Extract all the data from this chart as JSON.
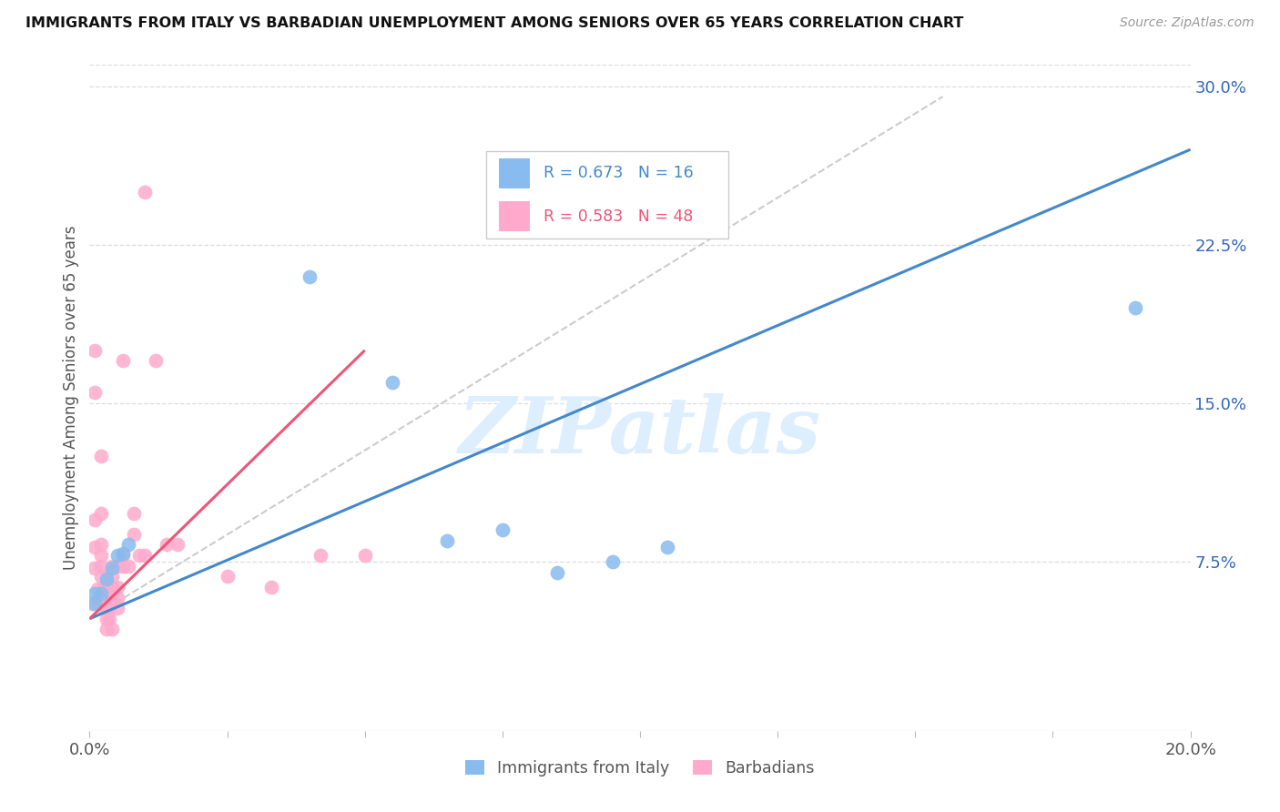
{
  "title": "IMMIGRANTS FROM ITALY VS BARBADIAN UNEMPLOYMENT AMONG SENIORS OVER 65 YEARS CORRELATION CHART",
  "source": "Source: ZipAtlas.com",
  "ylabel": "Unemployment Among Seniors over 65 years",
  "xlim": [
    0.0,
    0.2
  ],
  "ylim": [
    -0.005,
    0.31
  ],
  "xticks": [
    0.0,
    0.025,
    0.05,
    0.075,
    0.1,
    0.125,
    0.15,
    0.175,
    0.2
  ],
  "yticks_right": [
    0.075,
    0.15,
    0.225,
    0.3
  ],
  "yticklabels_right": [
    "7.5%",
    "15.0%",
    "22.5%",
    "30.0%"
  ],
  "legend_italy_R": "0.673",
  "legend_italy_N": "16",
  "legend_barbados_R": "0.583",
  "legend_barbados_N": "48",
  "blue_color": "#88BBEE",
  "pink_color": "#FFAACC",
  "blue_scatter_edge": "#88BBEE",
  "pink_scatter_edge": "#FFAACC",
  "blue_line_color": "#4488CC",
  "pink_line_color": "#EE5577",
  "watermark": "ZIPatlas",
  "watermark_color": "#DDEEFF",
  "italy_points": [
    [
      0.001,
      0.06
    ],
    [
      0.001,
      0.055
    ],
    [
      0.002,
      0.06
    ],
    [
      0.003,
      0.067
    ],
    [
      0.004,
      0.072
    ],
    [
      0.005,
      0.078
    ],
    [
      0.006,
      0.079
    ],
    [
      0.007,
      0.083
    ],
    [
      0.04,
      0.21
    ],
    [
      0.055,
      0.16
    ],
    [
      0.065,
      0.085
    ],
    [
      0.075,
      0.09
    ],
    [
      0.085,
      0.07
    ],
    [
      0.095,
      0.075
    ],
    [
      0.105,
      0.082
    ],
    [
      0.19,
      0.195
    ]
  ],
  "barbados_points": [
    [
      0.0005,
      0.055
    ],
    [
      0.001,
      0.175
    ],
    [
      0.001,
      0.155
    ],
    [
      0.001,
      0.095
    ],
    [
      0.001,
      0.082
    ],
    [
      0.001,
      0.072
    ],
    [
      0.0015,
      0.062
    ],
    [
      0.0015,
      0.057
    ],
    [
      0.002,
      0.125
    ],
    [
      0.002,
      0.098
    ],
    [
      0.002,
      0.083
    ],
    [
      0.002,
      0.078
    ],
    [
      0.002,
      0.073
    ],
    [
      0.002,
      0.068
    ],
    [
      0.0025,
      0.063
    ],
    [
      0.0025,
      0.058
    ],
    [
      0.003,
      0.063
    ],
    [
      0.003,
      0.058
    ],
    [
      0.003,
      0.053
    ],
    [
      0.003,
      0.048
    ],
    [
      0.003,
      0.043
    ],
    [
      0.0035,
      0.053
    ],
    [
      0.0035,
      0.048
    ],
    [
      0.004,
      0.073
    ],
    [
      0.004,
      0.068
    ],
    [
      0.004,
      0.063
    ],
    [
      0.004,
      0.058
    ],
    [
      0.004,
      0.043
    ],
    [
      0.005,
      0.073
    ],
    [
      0.005,
      0.063
    ],
    [
      0.005,
      0.058
    ],
    [
      0.005,
      0.053
    ],
    [
      0.006,
      0.17
    ],
    [
      0.006,
      0.078
    ],
    [
      0.006,
      0.073
    ],
    [
      0.007,
      0.073
    ],
    [
      0.008,
      0.098
    ],
    [
      0.008,
      0.088
    ],
    [
      0.009,
      0.078
    ],
    [
      0.01,
      0.078
    ],
    [
      0.01,
      0.25
    ],
    [
      0.012,
      0.17
    ],
    [
      0.014,
      0.083
    ],
    [
      0.016,
      0.083
    ],
    [
      0.025,
      0.068
    ],
    [
      0.033,
      0.063
    ],
    [
      0.042,
      0.078
    ],
    [
      0.05,
      0.078
    ]
  ],
  "blue_line_x": [
    0.0,
    0.2
  ],
  "blue_line_y": [
    0.048,
    0.27
  ],
  "pink_line_x": [
    0.0,
    0.05
  ],
  "pink_line_y": [
    0.048,
    0.175
  ],
  "dash_line_x": [
    0.0,
    0.155
  ],
  "dash_line_y": [
    0.048,
    0.295
  ]
}
